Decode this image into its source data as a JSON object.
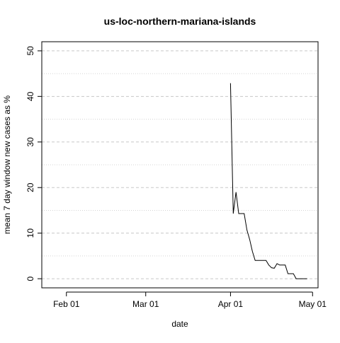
{
  "chart_data": {
    "type": "line",
    "title": "us-loc-northern-mariana-islands",
    "xlabel": "date",
    "ylabel": "mean  7  day window new cases as %",
    "x_ticks": [
      {
        "date": "2020-02-01",
        "label": "Feb 01"
      },
      {
        "date": "2020-03-01",
        "label": "Mar 01"
      },
      {
        "date": "2020-04-01",
        "label": "Apr 01"
      },
      {
        "date": "2020-05-01",
        "label": "May 01"
      }
    ],
    "y_ticks": [
      0,
      10,
      20,
      30,
      40,
      50
    ],
    "xlim": [
      "2020-01-23",
      "2020-05-03"
    ],
    "ylim": [
      -2,
      52
    ],
    "grid": {
      "major_y": [
        0,
        10,
        20,
        30,
        40,
        50
      ],
      "minor_y": [
        5,
        15,
        25,
        35,
        45
      ],
      "style": "dashed"
    },
    "series": [
      {
        "values": [
          {
            "x": "2020-04-01",
            "y": 42.9
          },
          {
            "x": "2020-04-02",
            "y": 14.3
          },
          {
            "x": "2020-04-03",
            "y": 19.0
          },
          {
            "x": "2020-04-04",
            "y": 14.3
          },
          {
            "x": "2020-04-05",
            "y": 14.3
          },
          {
            "x": "2020-04-06",
            "y": 14.3
          },
          {
            "x": "2020-04-07",
            "y": 10.7
          },
          {
            "x": "2020-04-08",
            "y": 8.6
          },
          {
            "x": "2020-04-09",
            "y": 6.0
          },
          {
            "x": "2020-04-10",
            "y": 4.0
          },
          {
            "x": "2020-04-11",
            "y": 4.0
          },
          {
            "x": "2020-04-12",
            "y": 4.0
          },
          {
            "x": "2020-04-13",
            "y": 4.0
          },
          {
            "x": "2020-04-14",
            "y": 4.0
          },
          {
            "x": "2020-04-15",
            "y": 3.0
          },
          {
            "x": "2020-04-16",
            "y": 2.4
          },
          {
            "x": "2020-04-17",
            "y": 2.3
          },
          {
            "x": "2020-04-18",
            "y": 3.3
          },
          {
            "x": "2020-04-19",
            "y": 3.0
          },
          {
            "x": "2020-04-20",
            "y": 3.0
          },
          {
            "x": "2020-04-21",
            "y": 3.0
          },
          {
            "x": "2020-04-22",
            "y": 1.1
          },
          {
            "x": "2020-04-23",
            "y": 1.1
          },
          {
            "x": "2020-04-24",
            "y": 1.1
          },
          {
            "x": "2020-04-25",
            "y": 0.0
          },
          {
            "x": "2020-04-26",
            "y": 0.0
          },
          {
            "x": "2020-04-27",
            "y": 0.0
          },
          {
            "x": "2020-04-28",
            "y": 0.0
          },
          {
            "x": "2020-04-29",
            "y": 0.0
          }
        ]
      }
    ]
  }
}
